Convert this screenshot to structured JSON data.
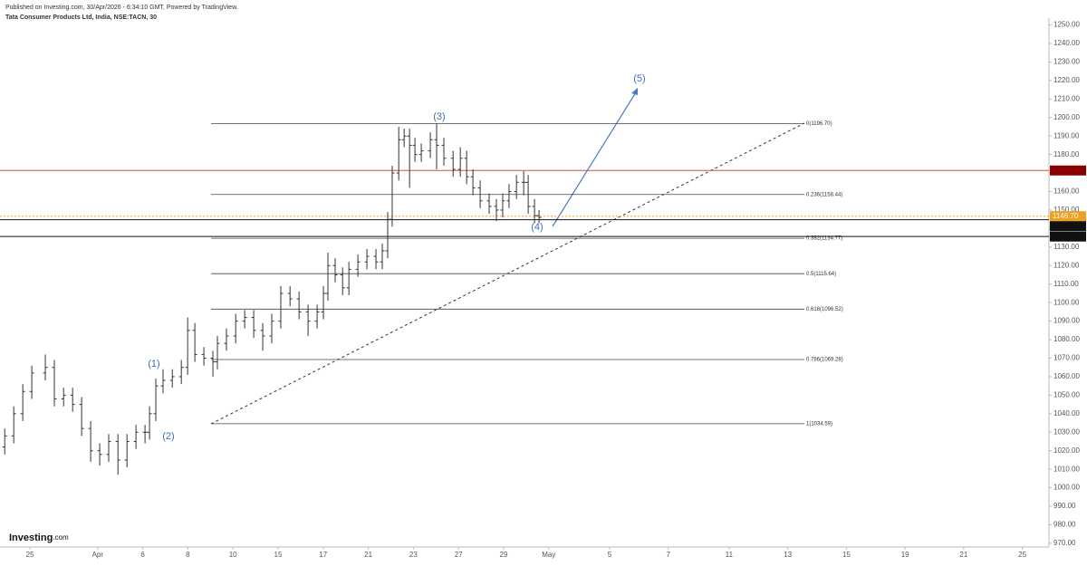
{
  "header": {
    "published": "Published on Investing.com, 30/Apr/2026 - 6:34:10 GMT, Powered by TradingView.",
    "symbol": "Tata Consumer Products Ltd, India, NSE:TACN, 30"
  },
  "logo": {
    "brand": "Investing",
    "suffix": ".com"
  },
  "chart_data": {
    "type": "ohlc",
    "color": "#333333",
    "x": [
      -1.12,
      -0.72,
      -0.32,
      0.08,
      0.68,
      1.08,
      1.49,
      1.89,
      2.29,
      2.69,
      3.09,
      3.49,
      3.9,
      4.3,
      4.7,
      5.1,
      5.3,
      5.58,
      5.9,
      6.31,
      6.71,
      6.99,
      7.31,
      7.71,
      8.11,
      8.31,
      8.71,
      9.12,
      9.52,
      9.92,
      10.32,
      10.72,
      11.12,
      11.53,
      11.93,
      12.33,
      12.73,
      13.01,
      13.21,
      13.53,
      13.86,
      14.14,
      14.54,
      14.94,
      15.34,
      15.62,
      15.86,
      16.06,
      16.35,
      16.59,
      16.83,
      17.07,
      17.35,
      17.75,
      18.03,
      18.35,
      18.76,
      19.08,
      19.36,
      19.64,
      19.96,
      20.36,
      20.68,
      20.96,
      21.24,
      21.57,
      21.89,
      22.09,
      22.37,
      22.57
    ],
    "open": [
      1022,
      1028,
      1040,
      1052,
      1062,
      1065,
      1048,
      1050,
      1045,
      1032,
      1020,
      1018,
      1025,
      1015,
      1025,
      1030,
      1030,
      1040,
      1055,
      1058,
      1060,
      1065,
      1085,
      1072,
      1070,
      1068,
      1078,
      1082,
      1090,
      1092,
      1085,
      1082,
      1090,
      1105,
      1102,
      1095,
      1090,
      1095,
      1105,
      1120,
      1115,
      1108,
      1118,
      1122,
      1125,
      1122,
      1128,
      1145,
      1170,
      1188,
      1190,
      1185,
      1180,
      1182,
      1188,
      1185,
      1178,
      1172,
      1178,
      1168,
      1162,
      1155,
      1152,
      1150,
      1155,
      1160,
      1165,
      1165,
      1152,
      1147
    ],
    "high": [
      1032,
      1044,
      1056,
      1066,
      1072,
      1069,
      1054,
      1054,
      1049,
      1036,
      1024,
      1029,
      1029,
      1029,
      1034,
      1034,
      1044,
      1059,
      1064,
      1064,
      1069,
      1092,
      1089,
      1076,
      1074,
      1082,
      1086,
      1094,
      1096,
      1096,
      1089,
      1094,
      1109,
      1109,
      1106,
      1099,
      1099,
      1109,
      1127,
      1124,
      1119,
      1122,
      1126,
      1129,
      1129,
      1132,
      1149,
      1174,
      1195,
      1194,
      1194,
      1189,
      1186,
      1192,
      1196.7,
      1189,
      1182,
      1184,
      1182,
      1172,
      1166,
      1159,
      1156,
      1159,
      1164,
      1169,
      1171,
      1169,
      1156,
      1150
    ],
    "low": [
      1018,
      1024,
      1036,
      1048,
      1058,
      1044,
      1044,
      1041,
      1028,
      1014,
      1012,
      1014,
      1007,
      1011,
      1021,
      1024,
      1026,
      1036,
      1051,
      1054,
      1056,
      1061,
      1068,
      1066,
      1060,
      1064,
      1074,
      1078,
      1086,
      1081,
      1074,
      1078,
      1086,
      1098,
      1091,
      1082,
      1086,
      1091,
      1101,
      1111,
      1104,
      1104,
      1114,
      1118,
      1118,
      1118,
      1124,
      1141,
      1166,
      1184,
      1162,
      1176,
      1176,
      1178,
      1172,
      1174,
      1168,
      1168,
      1164,
      1158,
      1151,
      1148,
      1144,
      1146,
      1151,
      1156,
      1158,
      1148,
      1143,
      1143
    ],
    "close": [
      1028,
      1040,
      1052,
      1062,
      1065,
      1048,
      1050,
      1045,
      1032,
      1020,
      1018,
      1025,
      1015,
      1025,
      1030,
      1030,
      1040,
      1055,
      1058,
      1060,
      1065,
      1085,
      1072,
      1070,
      1068,
      1078,
      1082,
      1090,
      1092,
      1085,
      1082,
      1090,
      1105,
      1102,
      1095,
      1090,
      1095,
      1105,
      1120,
      1115,
      1108,
      1118,
      1122,
      1125,
      1122,
      1128,
      1145,
      1170,
      1188,
      1190,
      1185,
      1180,
      1182,
      1188,
      1185,
      1178,
      1172,
      1178,
      1168,
      1162,
      1155,
      1152,
      1150,
      1155,
      1160,
      1165,
      1165,
      1152,
      1147,
      1146
    ],
    "xlim": [
      -1.33,
      45.18
    ],
    "ylim": [
      968,
      1253.7
    ],
    "xticks": [
      {
        "value": 0,
        "label": "25"
      },
      {
        "value": 3,
        "label": "Apr"
      },
      {
        "value": 5,
        "label": "6"
      },
      {
        "value": 7,
        "label": "8"
      },
      {
        "value": 9,
        "label": "10"
      },
      {
        "value": 11,
        "label": "15"
      },
      {
        "value": 13,
        "label": "17"
      },
      {
        "value": 15,
        "label": "21"
      },
      {
        "value": 17,
        "label": "23"
      },
      {
        "value": 19,
        "label": "27"
      },
      {
        "value": 21,
        "label": "29"
      },
      {
        "value": 23,
        "label": "May"
      },
      {
        "value": 25.7,
        "label": "5"
      },
      {
        "value": 28.3,
        "label": "7"
      },
      {
        "value": 31,
        "label": "11"
      },
      {
        "value": 33.6,
        "label": "13"
      },
      {
        "value": 36.2,
        "label": "15"
      },
      {
        "value": 38.8,
        "label": "19"
      },
      {
        "value": 41.4,
        "label": "21"
      },
      {
        "value": 44,
        "label": "25"
      }
    ],
    "yticks": [
      {
        "value": 970,
        "label": "970.00"
      },
      {
        "value": 980,
        "label": "980.00"
      },
      {
        "value": 990,
        "label": "990.00"
      },
      {
        "value": 1000,
        "label": "1000.00"
      },
      {
        "value": 1010,
        "label": "1010.00"
      },
      {
        "value": 1020,
        "label": "1020.00"
      },
      {
        "value": 1030,
        "label": "1030.00"
      },
      {
        "value": 1040,
        "label": "1040.00"
      },
      {
        "value": 1050,
        "label": "1050.00"
      },
      {
        "value": 1060,
        "label": "1060.00"
      },
      {
        "value": 1070,
        "label": "1070.00"
      },
      {
        "value": 1080,
        "label": "1080.00"
      },
      {
        "value": 1090,
        "label": "1090.00"
      },
      {
        "value": 1100,
        "label": "1100.00"
      },
      {
        "value": 1110,
        "label": "1110.00"
      },
      {
        "value": 1120,
        "label": "1120.00"
      },
      {
        "value": 1130,
        "label": "1130.00"
      },
      {
        "value": 1140,
        "label": "1140.00"
      },
      {
        "value": 1150,
        "label": "1150.00"
      },
      {
        "value": 1160,
        "label": "1160.00"
      },
      {
        "value": 1170,
        "label": "1170.00"
      },
      {
        "value": 1180,
        "label": "1180.00"
      },
      {
        "value": 1190,
        "label": "1190.00"
      },
      {
        "value": 1200,
        "label": "1200.00"
      },
      {
        "value": 1210,
        "label": "1210.00"
      },
      {
        "value": 1220,
        "label": "1220.00"
      },
      {
        "value": 1230,
        "label": "1230.00"
      },
      {
        "value": 1240,
        "label": "1240.00"
      },
      {
        "value": 1250,
        "label": "1250.00"
      }
    ],
    "fib_levels": [
      {
        "value": 1196.7,
        "label": "0(1196.70)"
      },
      {
        "value": 1158.44,
        "label": "0.236(1158.44)"
      },
      {
        "value": 1134.77,
        "label": "0.382(1134.77)"
      },
      {
        "value": 1115.64,
        "label": "0.5(1115.64)"
      },
      {
        "value": 1096.52,
        "label": "0.618(1096.52)"
      },
      {
        "value": 1069.28,
        "label": "0.786(1069.28)"
      },
      {
        "value": 1034.59,
        "label": "1(1034.59)"
      }
    ],
    "price_lines": [
      {
        "value": 1171.39,
        "color": "#8b0000"
      },
      {
        "value": 1146.7,
        "label": "1146.70",
        "color": "#f0a020"
      },
      {
        "value": 1144.76,
        "color": "#111111"
      },
      {
        "value": 1135.71,
        "color": "#111111"
      }
    ],
    "wave_labels": [
      "(1)",
      "(2)",
      "(3)",
      "(4)",
      "(5)"
    ]
  }
}
